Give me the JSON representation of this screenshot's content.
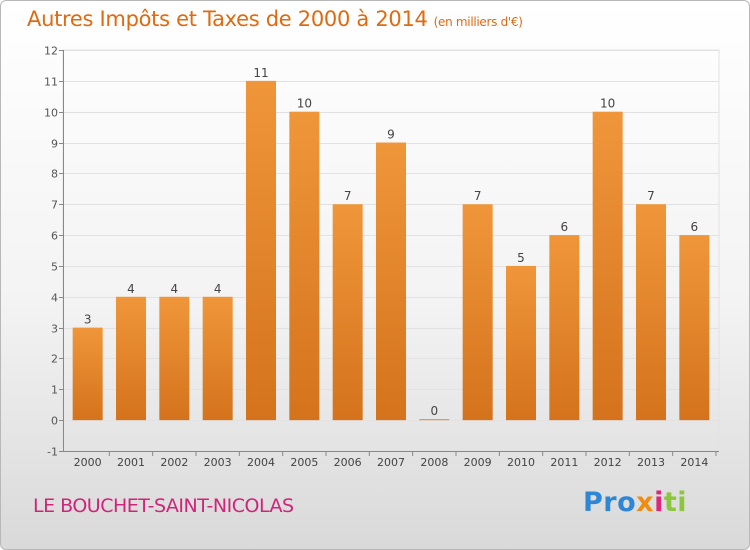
{
  "chart_data": {
    "type": "bar",
    "title": "Autres Impôts et Taxes de 2000 à 2014",
    "subtitle": "(en milliers d'€)",
    "categories": [
      "2000",
      "2001",
      "2002",
      "2003",
      "2004",
      "2005",
      "2006",
      "2007",
      "2008",
      "2009",
      "2010",
      "2011",
      "2012",
      "2013",
      "2014"
    ],
    "values": [
      3,
      4,
      4,
      4,
      11,
      10,
      7,
      9,
      0,
      7,
      5,
      6,
      10,
      7,
      6
    ],
    "ylim": [
      -1,
      12
    ],
    "yticks": [
      -1,
      0,
      1,
      2,
      3,
      4,
      5,
      6,
      7,
      8,
      9,
      10,
      11,
      12
    ],
    "grid": true,
    "bar_color": "#f0963a",
    "bar_color_dark": "#d4731c"
  },
  "footer": {
    "commune": "LE BOUCHET-SAINT-NICOLAS",
    "logo": [
      "Pro",
      "x",
      "i",
      "ti"
    ]
  }
}
